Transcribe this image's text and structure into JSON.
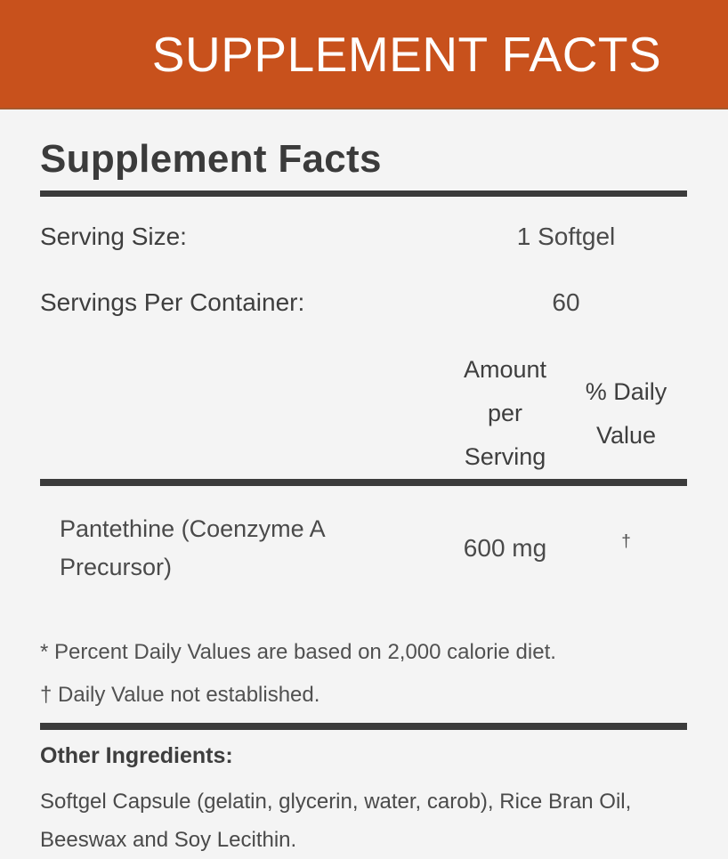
{
  "banner": {
    "title": "SUPPLEMENT FACTS"
  },
  "panel": {
    "title": "Supplement Facts",
    "serving_size": {
      "label": "Serving Size:",
      "value": "1 Softgel"
    },
    "servings_per_container": {
      "label": "Servings Per Container:",
      "value": "60"
    },
    "columns": {
      "amount": "Amount per Serving",
      "daily_value": "% Daily Value"
    },
    "ingredients": [
      {
        "name": "Pantethine (Coenzyme A Precursor)",
        "amount": "600 mg",
        "daily_value": "†"
      }
    ],
    "footnotes": [
      "* Percent Daily Values are based on 2,000 calorie diet.",
      "† Daily Value not established."
    ],
    "other_ingredients": {
      "label": "Other Ingredients:",
      "text": "Softgel Capsule (gelatin, glycerin, water, carob), Rice Bran Oil, Beeswax and Soy Lecithin."
    }
  },
  "colors": {
    "accent": "#C8511C",
    "background": "#F4F4F4",
    "heading": "#3B3B3B",
    "rule": "#3B3B3B",
    "body_text": "#4A4A4A"
  }
}
